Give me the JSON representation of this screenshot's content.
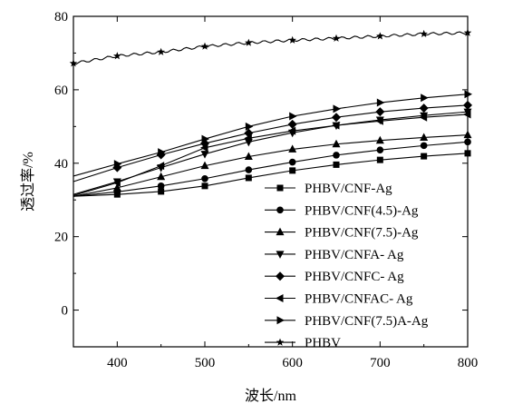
{
  "chart_data": {
    "type": "line",
    "xlabel": "波长/nm",
    "ylabel": "透过率/%",
    "xlim": [
      350,
      800
    ],
    "ylim": [
      -10,
      80
    ],
    "xticks": [
      400,
      500,
      600,
      700,
      800
    ],
    "yticks": [
      0,
      20,
      40,
      60,
      80
    ],
    "grid": false,
    "legend_position": "lower-right",
    "series": [
      {
        "name": "PHBV/CNF-Ag",
        "marker": "square",
        "x": [
          350,
          400,
          450,
          500,
          550,
          600,
          650,
          700,
          750,
          800
        ],
        "y": [
          31.0,
          31.5,
          32.3,
          33.8,
          36.0,
          38.0,
          39.6,
          40.9,
          41.9,
          42.7
        ]
      },
      {
        "name": "PHBV/CNF(4.5)-Ag",
        "marker": "circle",
        "x": [
          350,
          400,
          450,
          500,
          550,
          600,
          650,
          700,
          750,
          800
        ],
        "y": [
          31.0,
          32.2,
          33.8,
          35.8,
          38.2,
          40.3,
          42.2,
          43.6,
          44.8,
          45.8
        ]
      },
      {
        "name": "PHBV/CNF(7.5)-Ag",
        "marker": "triangle-up",
        "x": [
          350,
          400,
          450,
          500,
          550,
          600,
          650,
          700,
          750,
          800
        ],
        "y": [
          31.0,
          33.3,
          36.3,
          39.3,
          41.8,
          43.8,
          45.2,
          46.2,
          47.0,
          47.7
        ]
      },
      {
        "name": "PHBV/CNFA- Ag",
        "marker": "triangle-down",
        "x": [
          350,
          400,
          450,
          500,
          550,
          600,
          650,
          700,
          750,
          800
        ],
        "y": [
          31.5,
          35.0,
          38.8,
          42.5,
          45.8,
          48.3,
          50.3,
          51.8,
          53.0,
          54.0
        ]
      },
      {
        "name": "PHBV/CNFC- Ag",
        "marker": "diamond",
        "x": [
          350,
          400,
          450,
          500,
          550,
          600,
          650,
          700,
          750,
          800
        ],
        "y": [
          35.0,
          38.8,
          42.3,
          45.4,
          48.2,
          50.6,
          52.5,
          54.0,
          55.0,
          55.8
        ]
      },
      {
        "name": "PHBV/CNFAC- Ag",
        "marker": "triangle-left",
        "x": [
          350,
          400,
          450,
          500,
          550,
          600,
          650,
          700,
          750,
          800
        ],
        "y": [
          31.2,
          34.7,
          39.3,
          44.2,
          46.8,
          48.8,
          50.3,
          51.5,
          52.5,
          53.3
        ]
      },
      {
        "name": "PHBV/CNF(7.5)A-Ag",
        "marker": "triangle-right",
        "x": [
          350,
          400,
          450,
          500,
          550,
          600,
          650,
          700,
          750,
          800
        ],
        "y": [
          36.5,
          39.8,
          43.0,
          46.6,
          50.0,
          52.8,
          54.8,
          56.5,
          57.8,
          58.8
        ]
      },
      {
        "name": "PHBV",
        "marker": "star",
        "x": [
          350,
          400,
          450,
          500,
          550,
          600,
          650,
          700,
          750,
          800
        ],
        "y": [
          67.2,
          69.2,
          70.3,
          71.8,
          72.8,
          73.5,
          74.0,
          74.6,
          75.2,
          75.5
        ]
      }
    ]
  }
}
